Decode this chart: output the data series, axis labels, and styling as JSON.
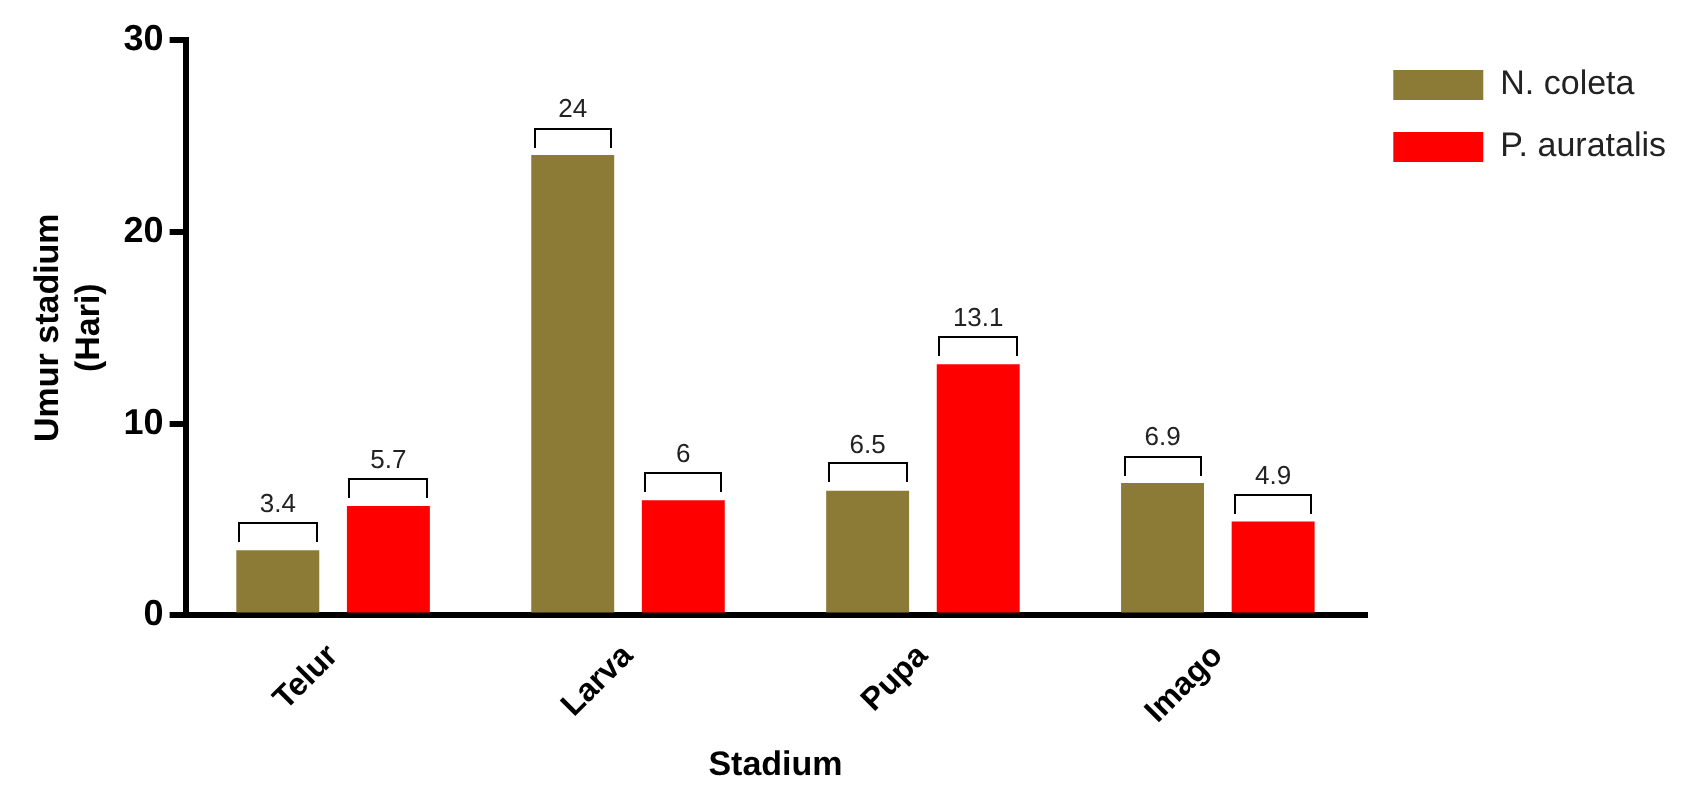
{
  "chart_data": {
    "type": "bar",
    "xlabel": "Stadium",
    "ylabel": "Umur stadium\n(Hari)",
    "categories": [
      "Telur",
      "Larva",
      "Pupa",
      "Imago"
    ],
    "series": [
      {
        "name": "N. coleta",
        "color": "#8b7b36",
        "values": [
          3.4,
          24,
          6.5,
          6.9
        ]
      },
      {
        "name": "P. auratalis",
        "color": "#ff0000",
        "values": [
          5.7,
          6,
          13.1,
          4.9
        ]
      }
    ],
    "ylim": [
      0,
      30
    ],
    "yticks": [
      0,
      10,
      20,
      30
    ],
    "grid": false,
    "legend": "top right",
    "data_labels": true
  }
}
